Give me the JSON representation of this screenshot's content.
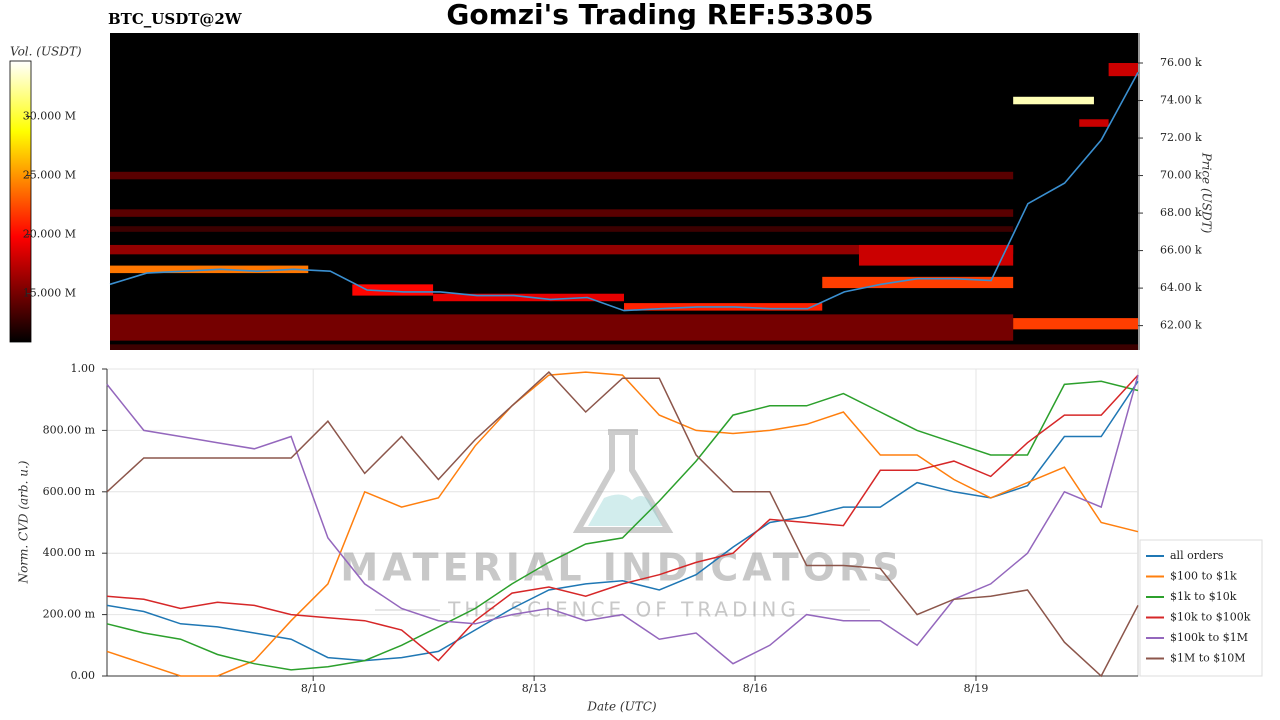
{
  "chart_data": [
    {
      "type": "heatmap",
      "title": "Gomzi's Trading REF:53305",
      "subtitle": "BTC_USDT@2W",
      "y_label": "Price (USDT)",
      "colorbar_label": "Vol. (USDT)",
      "colormap": "hot",
      "xlim": [
        7.2,
        21.2
      ],
      "ylim": [
        60700,
        77600
      ],
      "yticks": [
        {
          "value": 62000,
          "label": "62.00 k"
        },
        {
          "value": 64000,
          "label": "64.00 k"
        },
        {
          "value": 66000,
          "label": "66.00 k"
        },
        {
          "value": 68000,
          "label": "68.00 k"
        },
        {
          "value": 70000,
          "label": "70.00 k"
        },
        {
          "value": 72000,
          "label": "72.00 k"
        },
        {
          "value": 74000,
          "label": "74.00 k"
        },
        {
          "value": 76000,
          "label": "76.00 k"
        }
      ],
      "zlim": [
        10900000,
        34700000
      ],
      "zticks": [
        {
          "value": 15000000,
          "label": "15.000 M"
        },
        {
          "value": 20000000,
          "label": "20.000 M"
        },
        {
          "value": 25000000,
          "label": "25.000 M"
        },
        {
          "value": 30000000,
          "label": "30.000 M"
        }
      ],
      "cells": [
        {
          "x0": 7.2,
          "x1": 21.2,
          "y0": 60700,
          "y1": 61000,
          "value": 13000000
        },
        {
          "x0": 7.2,
          "x1": 19.5,
          "y0": 61200,
          "y1": 62600,
          "value": 15000000
        },
        {
          "x0": 19.5,
          "x1": 21.2,
          "y0": 61800,
          "y1": 62400,
          "value": 22000000
        },
        {
          "x0": 7.2,
          "x1": 19.5,
          "y0": 65800,
          "y1": 66300,
          "value": 16000000
        },
        {
          "x0": 7.2,
          "x1": 19.5,
          "y0": 67000,
          "y1": 67300,
          "value": 13000000
        },
        {
          "x0": 7.2,
          "x1": 19.5,
          "y0": 67800,
          "y1": 68200,
          "value": 14000000
        },
        {
          "x0": 7.2,
          "x1": 19.5,
          "y0": 69800,
          "y1": 70200,
          "value": 14000000
        },
        {
          "x0": 7.2,
          "x1": 9.9,
          "y0": 64800,
          "y1": 65200,
          "value": 24000000
        },
        {
          "x0": 10.5,
          "x1": 11.6,
          "y0": 63600,
          "y1": 64200,
          "value": 20000000
        },
        {
          "x0": 11.6,
          "x1": 14.2,
          "y0": 63300,
          "y1": 63700,
          "value": 19000000
        },
        {
          "x0": 14.2,
          "x1": 16.9,
          "y0": 62800,
          "y1": 63200,
          "value": 21000000
        },
        {
          "x0": 16.9,
          "x1": 19.5,
          "y0": 64000,
          "y1": 64600,
          "value": 22000000
        },
        {
          "x0": 17.4,
          "x1": 19.5,
          "y0": 65200,
          "y1": 66300,
          "value": 18000000
        },
        {
          "x0": 19.5,
          "x1": 20.6,
          "y0": 73800,
          "y1": 74200,
          "value": 33000000
        },
        {
          "x0": 20.4,
          "x1": 20.8,
          "y0": 72600,
          "y1": 73000,
          "value": 18000000
        },
        {
          "x0": 20.8,
          "x1": 21.2,
          "y0": 75300,
          "y1": 76000,
          "value": 18000000
        }
      ],
      "x": [
        7.2,
        7.7,
        8.2,
        8.7,
        9.2,
        9.7,
        10.2,
        10.7,
        11.2,
        11.7,
        12.2,
        12.7,
        13.2,
        13.7,
        14.2,
        14.7,
        15.2,
        15.7,
        16.2,
        16.7,
        17.2,
        17.7,
        18.2,
        18.7,
        19.2,
        19.7,
        20.2,
        20.7,
        21.2
      ],
      "price_line": {
        "color": "#3a8fd0",
        "values": [
          64200,
          64800,
          64900,
          65000,
          64900,
          65000,
          64900,
          63900,
          63800,
          63800,
          63600,
          63600,
          63400,
          63500,
          62800,
          62900,
          63000,
          63000,
          62900,
          62900,
          63800,
          64200,
          64500,
          64500,
          64400,
          68500,
          69600,
          71900,
          75500
        ]
      }
    },
    {
      "type": "line",
      "x_label": "Date (UTC)",
      "y_label": "Norm. CVD (arb. u.)",
      "grid": true,
      "legend": "right",
      "watermark": [
        "MATERIAL INDICATORS",
        "THE SCIENCE OF TRADING"
      ],
      "xlim": [
        7.2,
        21.2
      ],
      "xticks": [
        {
          "value": 10,
          "label": "8/10"
        },
        {
          "value": 13,
          "label": "8/13"
        },
        {
          "value": 16,
          "label": "8/16"
        },
        {
          "value": 19,
          "label": "8/19"
        }
      ],
      "ylim": [
        0,
        1
      ],
      "yticks": [
        {
          "value": 0,
          "label": "0.00"
        },
        {
          "value": 0.2,
          "label": "200.00 m"
        },
        {
          "value": 0.4,
          "label": "400.00 m"
        },
        {
          "value": 0.6,
          "label": "600.00 m"
        },
        {
          "value": 0.8,
          "label": "800.00 m"
        },
        {
          "value": 1,
          "label": "1.00"
        }
      ],
      "x": [
        7.2,
        7.7,
        8.2,
        8.7,
        9.2,
        9.7,
        10.2,
        10.7,
        11.2,
        11.7,
        12.2,
        12.7,
        13.2,
        13.7,
        14.2,
        14.7,
        15.2,
        15.7,
        16.2,
        16.7,
        17.2,
        17.7,
        18.2,
        18.7,
        19.2,
        19.7,
        20.2,
        20.7,
        21.2
      ],
      "series": [
        {
          "name": "all orders",
          "color": "#1f77b4",
          "values": [
            0.23,
            0.21,
            0.17,
            0.16,
            0.14,
            0.12,
            0.06,
            0.05,
            0.06,
            0.08,
            0.15,
            0.22,
            0.28,
            0.3,
            0.31,
            0.28,
            0.33,
            0.42,
            0.5,
            0.52,
            0.55,
            0.55,
            0.63,
            0.6,
            0.58,
            0.62,
            0.78,
            0.78,
            0.96
          ]
        },
        {
          "name": "$100 to $1k",
          "color": "#ff7f0e",
          "values": [
            0.08,
            0.04,
            0.0,
            0.0,
            0.05,
            0.18,
            0.3,
            0.6,
            0.55,
            0.58,
            0.75,
            0.88,
            0.98,
            0.99,
            0.98,
            0.85,
            0.8,
            0.79,
            0.8,
            0.82,
            0.86,
            0.72,
            0.72,
            0.64,
            0.58,
            0.63,
            0.68,
            0.5,
            0.47
          ]
        },
        {
          "name": "$1k to $10k",
          "color": "#2ca02c",
          "values": [
            0.17,
            0.14,
            0.12,
            0.07,
            0.04,
            0.02,
            0.03,
            0.05,
            0.1,
            0.16,
            0.22,
            0.3,
            0.37,
            0.43,
            0.45,
            0.57,
            0.7,
            0.85,
            0.88,
            0.88,
            0.92,
            0.86,
            0.8,
            0.76,
            0.72,
            0.72,
            0.95,
            0.96,
            0.93
          ]
        },
        {
          "name": "$10k to $100k",
          "color": "#d62728",
          "values": [
            0.26,
            0.25,
            0.22,
            0.24,
            0.23,
            0.2,
            0.19,
            0.18,
            0.15,
            0.05,
            0.18,
            0.27,
            0.29,
            0.26,
            0.3,
            0.33,
            0.37,
            0.4,
            0.51,
            0.5,
            0.49,
            0.67,
            0.67,
            0.7,
            0.65,
            0.76,
            0.85,
            0.85,
            0.98
          ]
        },
        {
          "name": "$100k to $1M",
          "color": "#9467bd",
          "values": [
            0.95,
            0.8,
            0.78,
            0.76,
            0.74,
            0.78,
            0.45,
            0.3,
            0.22,
            0.18,
            0.17,
            0.2,
            0.22,
            0.18,
            0.2,
            0.12,
            0.14,
            0.04,
            0.1,
            0.2,
            0.18,
            0.18,
            0.1,
            0.25,
            0.3,
            0.4,
            0.6,
            0.55,
            0.98
          ]
        },
        {
          "name": "$1M to $10M",
          "color": "#8c564b",
          "values": [
            0.6,
            0.71,
            0.71,
            0.71,
            0.71,
            0.71,
            0.83,
            0.66,
            0.78,
            0.64,
            0.77,
            0.88,
            0.99,
            0.86,
            0.97,
            0.97,
            0.72,
            0.6,
            0.6,
            0.36,
            0.36,
            0.35,
            0.2,
            0.25,
            0.26,
            0.28,
            0.11,
            0.0,
            0.23
          ]
        }
      ]
    }
  ]
}
